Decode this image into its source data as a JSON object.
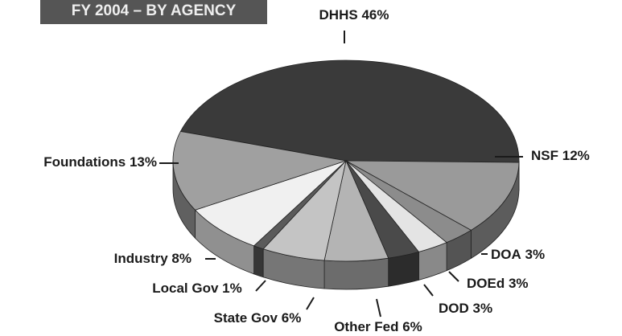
{
  "chart_data": {
    "type": "pie",
    "title": "FY 2004 – BY AGENCY",
    "categories": [
      "DHHS",
      "NSF",
      "DOA",
      "DOEd",
      "DOD",
      "Other Fed",
      "State Gov",
      "Local Gov",
      "Industry",
      "Foundations"
    ],
    "values": [
      46,
      12,
      3,
      3,
      3,
      6,
      6,
      1,
      8,
      13
    ],
    "value_labels": [
      "46%",
      "12%",
      "3%",
      "3%",
      "3%",
      "6%",
      "6%",
      "1%",
      "8%",
      "13%"
    ],
    "colors": [
      "#3a3a3a",
      "#9a9a9a",
      "#8c8c8c",
      "#e4e4e4",
      "#4a4a4a",
      "#b4b4b4",
      "#c4c4c4",
      "#5a5a5a",
      "#f0f0f0",
      "#a0a0a0"
    ]
  }
}
